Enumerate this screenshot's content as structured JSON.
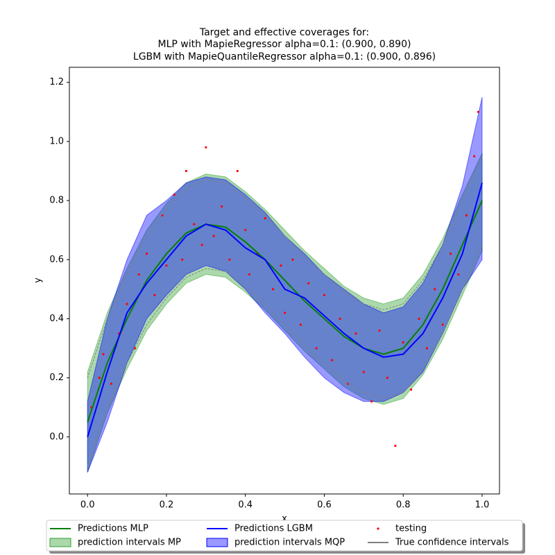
{
  "chart_data": {
    "type": "interval-line",
    "title": [
      "Target and effective coverages for:",
      "MLP with MapieRegressor alpha=0.1: (0.900, 0.890)",
      "LGBM with MapieQuantileRegressor alpha=0.1: (0.900, 0.896)"
    ],
    "x_label": "x",
    "y_label": "y",
    "xlim": [
      -0.046,
      1.044
    ],
    "ylim": [
      -0.193,
      1.251
    ],
    "xticks": [
      {
        "value": 0,
        "label": "0.0"
      },
      {
        "value": 0.2,
        "label": "0.2"
      },
      {
        "value": 0.4,
        "label": "0.4"
      },
      {
        "value": 0.6,
        "label": "0.6"
      },
      {
        "value": 0.8,
        "label": "0.8"
      },
      {
        "value": 1,
        "label": "1.0"
      }
    ],
    "yticks": [
      {
        "value": 0,
        "label": "0.0"
      },
      {
        "value": 0.2,
        "label": "0.2"
      },
      {
        "value": 0.4,
        "label": "0.4"
      },
      {
        "value": 0.6,
        "label": "0.6"
      },
      {
        "value": 0.8,
        "label": "0.8"
      },
      {
        "value": 1,
        "label": "1.0"
      },
      {
        "value": 1.2,
        "label": "1.2"
      }
    ],
    "x": [
      0,
      0.05,
      0.1,
      0.15,
      0.2,
      0.25,
      0.3,
      0.35,
      0.4,
      0.45,
      0.5,
      0.55,
      0.6,
      0.65,
      0.7,
      0.75,
      0.8,
      0.85,
      0.9,
      0.95,
      1.0
    ],
    "intervals": [
      {
        "name": "prediction intervals MP",
        "color": "#2ca02c",
        "lower": [
          -0.12,
          0.08,
          0.23,
          0.36,
          0.45,
          0.52,
          0.55,
          0.54,
          0.49,
          0.43,
          0.36,
          0.29,
          0.23,
          0.17,
          0.13,
          0.11,
          0.13,
          0.21,
          0.33,
          0.48,
          0.63
        ],
        "upper": [
          0.22,
          0.42,
          0.57,
          0.7,
          0.79,
          0.86,
          0.89,
          0.88,
          0.83,
          0.77,
          0.7,
          0.63,
          0.57,
          0.51,
          0.47,
          0.45,
          0.47,
          0.55,
          0.67,
          0.82,
          0.96
        ]
      },
      {
        "name": "prediction intervals MQP",
        "color": "#0000ff",
        "lower": [
          -0.12,
          0.05,
          0.25,
          0.4,
          0.48,
          0.55,
          0.58,
          0.56,
          0.5,
          0.42,
          0.35,
          0.27,
          0.2,
          0.15,
          0.12,
          0.12,
          0.15,
          0.22,
          0.35,
          0.5,
          0.6
        ],
        "upper": [
          0.12,
          0.4,
          0.6,
          0.75,
          0.8,
          0.86,
          0.88,
          0.87,
          0.82,
          0.76,
          0.68,
          0.62,
          0.55,
          0.5,
          0.45,
          0.42,
          0.44,
          0.52,
          0.65,
          0.85,
          1.15
        ]
      }
    ],
    "series": [
      {
        "name": "Predictions MLP",
        "color": "#008000",
        "values": [
          0.05,
          0.25,
          0.4,
          0.53,
          0.62,
          0.69,
          0.72,
          0.71,
          0.66,
          0.6,
          0.53,
          0.46,
          0.4,
          0.34,
          0.3,
          0.28,
          0.3,
          0.38,
          0.5,
          0.65,
          0.8
        ]
      },
      {
        "name": "Predictions LGBM",
        "color": "#0000ff",
        "values": [
          0.0,
          0.22,
          0.42,
          0.52,
          0.6,
          0.68,
          0.72,
          0.7,
          0.64,
          0.6,
          0.5,
          0.47,
          0.41,
          0.35,
          0.3,
          0.27,
          0.28,
          0.35,
          0.47,
          0.62,
          0.86
        ]
      }
    ],
    "true_interval": {
      "name": "True confidence intervals",
      "color": "#808080",
      "lower": [
        -0.1,
        0.1,
        0.25,
        0.38,
        0.47,
        0.54,
        0.57,
        0.56,
        0.51,
        0.45,
        0.38,
        0.31,
        0.25,
        0.19,
        0.15,
        0.13,
        0.15,
        0.23,
        0.35,
        0.5,
        0.65
      ],
      "upper": [
        0.2,
        0.4,
        0.55,
        0.68,
        0.77,
        0.84,
        0.87,
        0.86,
        0.81,
        0.75,
        0.68,
        0.61,
        0.55,
        0.49,
        0.45,
        0.43,
        0.45,
        0.53,
        0.65,
        0.8,
        0.95
      ]
    },
    "scatter": {
      "name": "testing",
      "color": "#ff0000",
      "x": [
        0.01,
        0.03,
        0.04,
        0.06,
        0.08,
        0.1,
        0.12,
        0.13,
        0.15,
        0.17,
        0.19,
        0.2,
        0.22,
        0.24,
        0.25,
        0.27,
        0.29,
        0.3,
        0.32,
        0.34,
        0.36,
        0.38,
        0.4,
        0.41,
        0.43,
        0.45,
        0.47,
        0.49,
        0.5,
        0.52,
        0.54,
        0.56,
        0.58,
        0.6,
        0.62,
        0.64,
        0.66,
        0.68,
        0.7,
        0.72,
        0.74,
        0.76,
        0.78,
        0.8,
        0.82,
        0.84,
        0.86,
        0.88,
        0.9,
        0.92,
        0.94,
        0.96,
        0.98,
        0.99
      ],
      "y": [
        0.1,
        0.2,
        0.28,
        0.18,
        0.35,
        0.45,
        0.3,
        0.55,
        0.62,
        0.48,
        0.75,
        0.58,
        0.82,
        0.6,
        0.9,
        0.72,
        0.65,
        0.98,
        0.68,
        0.78,
        0.6,
        0.9,
        0.7,
        0.55,
        0.62,
        0.74,
        0.5,
        0.58,
        0.42,
        0.6,
        0.38,
        0.52,
        0.3,
        0.48,
        0.26,
        0.4,
        0.18,
        0.35,
        0.22,
        0.12,
        0.36,
        0.2,
        -0.03,
        0.32,
        0.16,
        0.4,
        0.3,
        0.5,
        0.38,
        0.62,
        0.55,
        0.75,
        0.95,
        1.1
      ]
    }
  }
}
